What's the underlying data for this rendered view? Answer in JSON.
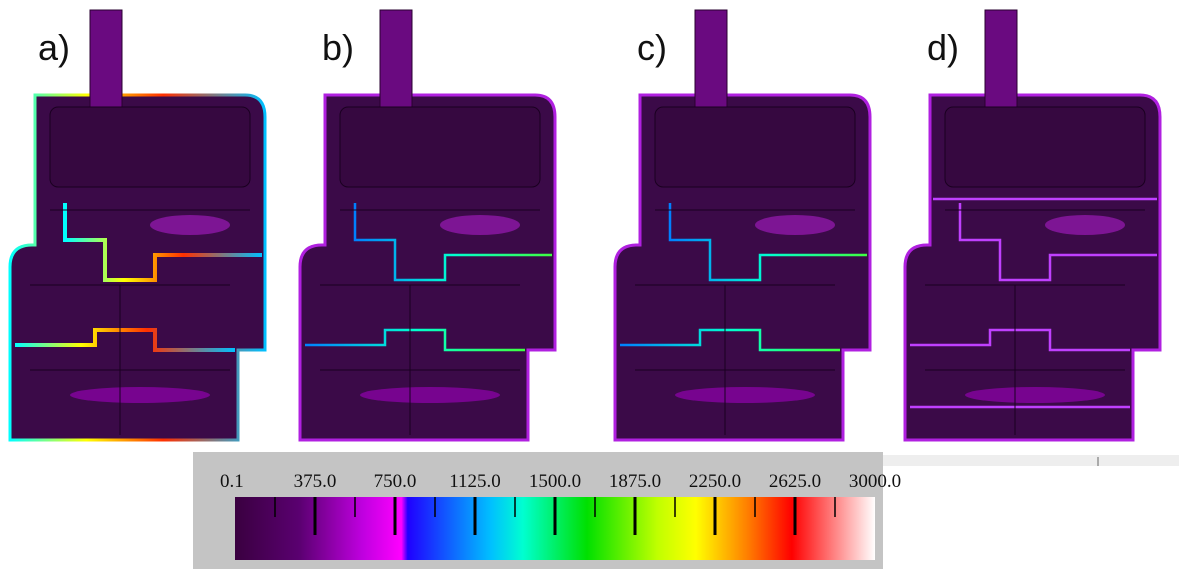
{
  "panels": [
    {
      "label": "a)"
    },
    {
      "label": "b)"
    },
    {
      "label": "c)"
    },
    {
      "label": "d)"
    }
  ],
  "colorbar": {
    "labels": [
      "0.1",
      "375.0",
      "750.0",
      "1125.0",
      "1500.0",
      "1875.0",
      "2250.0",
      "2625.0",
      "3000.0"
    ]
  }
}
